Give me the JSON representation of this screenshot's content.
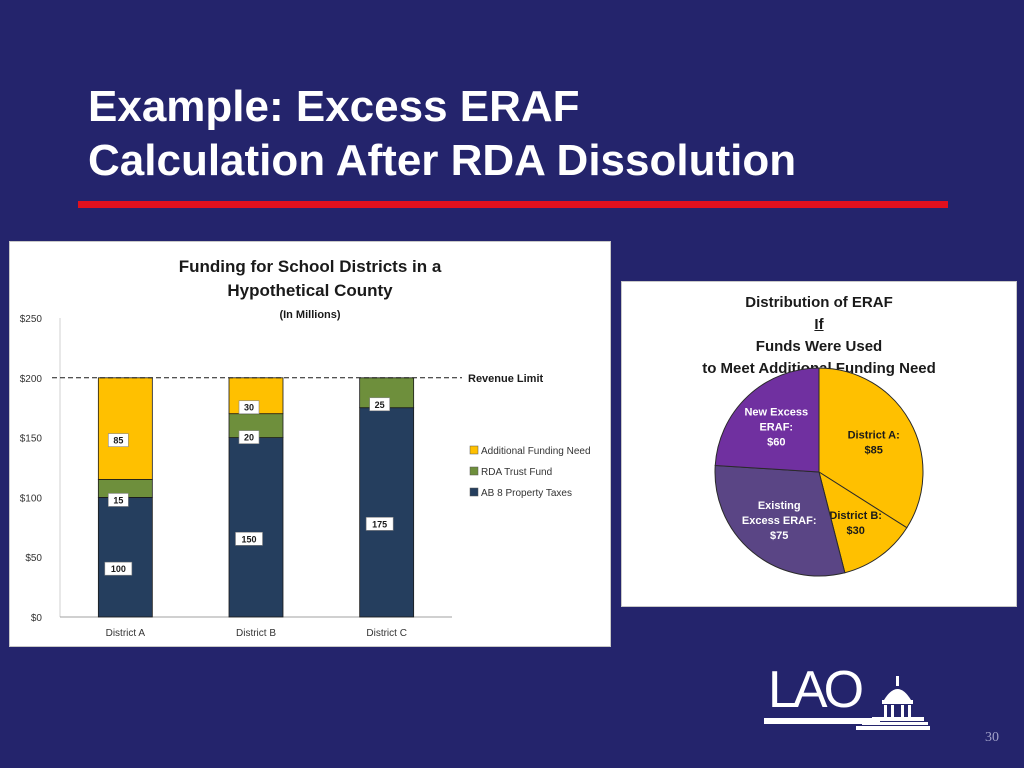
{
  "slide": {
    "title_line1": "Example: Excess ERAF",
    "title_line2": "Calculation After RDA Dissolution",
    "page_number": "30",
    "logo_text": "LAO",
    "logo_icon": "capitol-dome-icon",
    "accent_rule_color": "#e0101e",
    "background_color": "#24246c"
  },
  "chart_data": [
    {
      "type": "bar",
      "stacked": true,
      "title_line1": "Funding for School Districts in a",
      "title_line2": "Hypothetical County",
      "title_unit": "(In Millions)",
      "categories": [
        "District A",
        "District B",
        "District C"
      ],
      "series": [
        {
          "name": "AB 8 Property Taxes",
          "values": [
            100,
            150,
            175
          ],
          "color": "#253e5e"
        },
        {
          "name": "RDA Trust Fund",
          "values": [
            15,
            20,
            25
          ],
          "color": "#6e8f3c"
        },
        {
          "name": "Additional Funding Need",
          "values": [
            85,
            30,
            null
          ],
          "color": "#ffc000"
        }
      ],
      "data_labels": [
        [
          "100",
          "150",
          "175"
        ],
        [
          "15",
          "20",
          "25"
        ],
        [
          "85",
          "30",
          ""
        ]
      ],
      "y_ticks": [
        0,
        50,
        100,
        150,
        200,
        250
      ],
      "y_tick_labels": [
        "$0",
        "$50",
        "$100",
        "$150",
        "$200",
        "$250"
      ],
      "ylim": [
        0,
        250
      ],
      "reference_line": {
        "value": 200,
        "label": "Revenue Limit",
        "style": "dashed"
      },
      "legend_order": [
        "Additional Funding Need",
        "RDA Trust Fund",
        "AB 8 Property Taxes"
      ],
      "legend_position": "right",
      "grid": false
    },
    {
      "type": "pie",
      "title_line1_pre": "Distribution of ERAF ",
      "title_line1_emph": "If",
      "title_line1_post": " Funds Were Used",
      "title_line2": "to Meet Additional Funding Need",
      "slices": [
        {
          "label_line1": "District A:",
          "label_line2": "$85",
          "value": 85,
          "color": "#ffc000",
          "label_color": "#1a1a1a"
        },
        {
          "label_line1": "District B:",
          "label_line2": "$30",
          "value": 30,
          "color": "#ffc000",
          "label_color": "#1a1a1a"
        },
        {
          "label_line1": "Existing",
          "label_line2": "Excess ERAF:",
          "label_line3": "$75",
          "value": 75,
          "color": "#5a4585",
          "label_color": "#ffffff"
        },
        {
          "label_line1": "New Excess",
          "label_line2": "ERAF:",
          "label_line3": "$60",
          "value": 60,
          "color": "#7030a0",
          "label_color": "#ffffff"
        }
      ],
      "start_angle_deg": 0,
      "direction": "clockwise"
    }
  ]
}
